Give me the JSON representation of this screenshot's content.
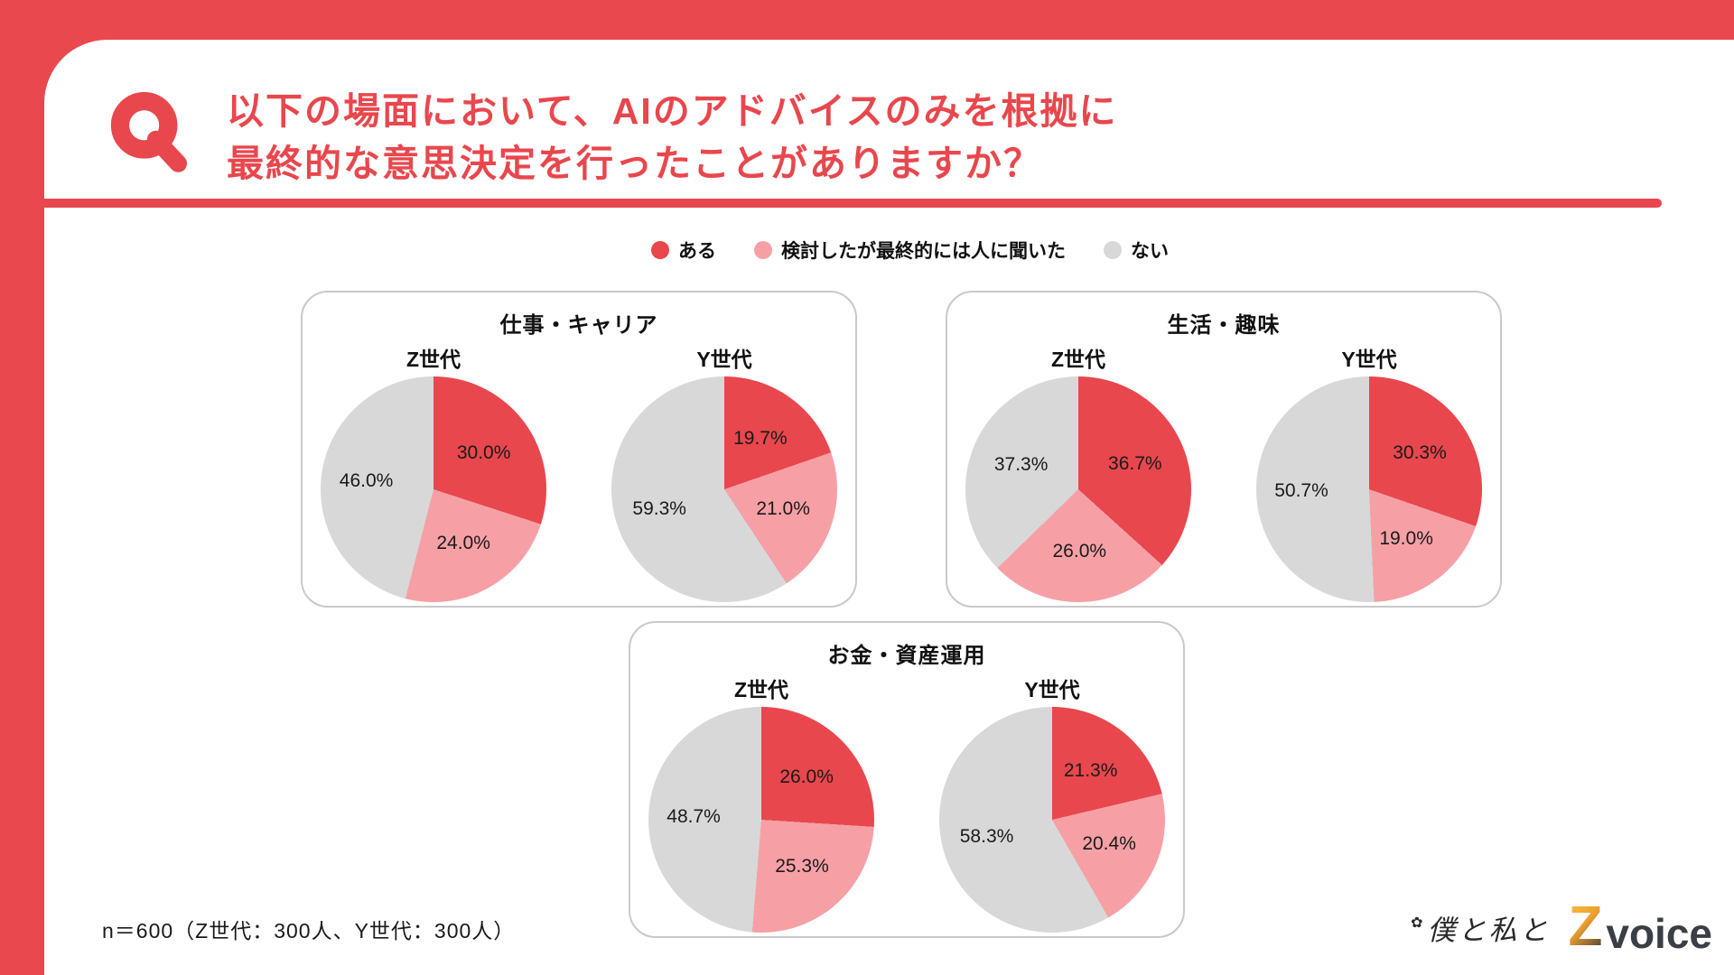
{
  "page": {
    "accent_red": "#e8474d",
    "q_label": "Q",
    "title_line1": "以下の場面において、AIのアドバイスのみを根拠に",
    "title_line2": "最終的な意思決定を行ったことがありますか？",
    "note": "n＝600（Z世代：300人、Y世代：300人）",
    "logo_flower": "✿",
    "logo_handwritten": "僕と私と",
    "logo_z": "Z",
    "logo_voice": "voice"
  },
  "legend": [
    {
      "label": "ある",
      "color": "#e8474d"
    },
    {
      "label": "検討したが最終的には人に聞いた",
      "color": "#f6a0a6"
    },
    {
      "label": "ない",
      "color": "#d8d8d8"
    }
  ],
  "chart_data": {
    "type": "pie",
    "legend": [
      "ある",
      "検討したが最終的には人に聞いた",
      "ない"
    ],
    "colors": [
      "#e8474d",
      "#f6a0a6",
      "#d8d8d8"
    ],
    "unit": "%",
    "panels": [
      {
        "title": "仕事・キャリア",
        "pies": [
          {
            "label": "Z世代",
            "values": [
              30.0,
              24.0,
              46.0
            ]
          },
          {
            "label": "Y世代",
            "values": [
              19.7,
              21.0,
              59.3
            ]
          }
        ]
      },
      {
        "title": "生活・趣味",
        "pies": [
          {
            "label": "Z世代",
            "values": [
              36.7,
              26.0,
              37.3
            ]
          },
          {
            "label": "Y世代",
            "values": [
              30.3,
              19.0,
              50.7
            ]
          }
        ]
      },
      {
        "title": "お金・資産運用",
        "pies": [
          {
            "label": "Z世代",
            "values": [
              26.0,
              25.3,
              48.7
            ]
          },
          {
            "label": "Y世代",
            "values": [
              21.3,
              20.4,
              58.3
            ]
          }
        ]
      }
    ]
  }
}
